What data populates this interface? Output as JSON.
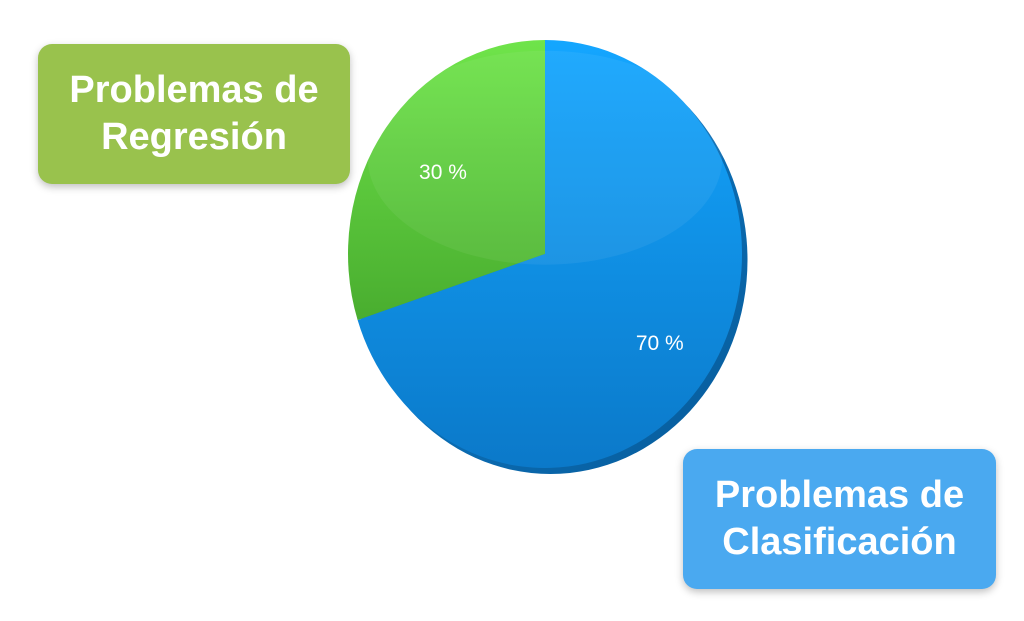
{
  "chart_data": {
    "type": "pie",
    "title": "",
    "slices": [
      {
        "name": "Problemas de Regresión",
        "label_lines": [
          "Problemas de",
          "Regresión"
        ],
        "value": 30,
        "value_label": "30 %",
        "color": "#5ec93c",
        "box_color": "#99c24d"
      },
      {
        "name": "Problemas de Clasificación",
        "label_lines": [
          "Problemas de",
          "Clasificación"
        ],
        "value": 70,
        "value_label": "70 %",
        "color": "#1191e6",
        "box_color": "#4aa9f0"
      }
    ],
    "start_angle_deg": 0,
    "direction": "counterclockwise-from-top for first slice",
    "legend": "callout boxes: top-left and bottom-right",
    "style": "3D shaded"
  }
}
